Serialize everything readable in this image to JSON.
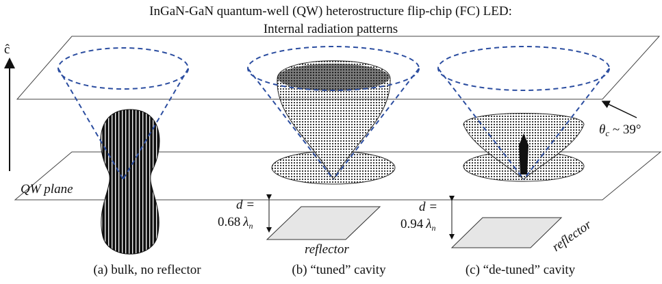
{
  "header": {
    "title_line1": "InGaN-GaN quantum-well (QW) heterostructure flip-chip (FC) LED:",
    "title_line2": "Internal radiation patterns"
  },
  "axis": {
    "label": "ĉ"
  },
  "angle": {
    "symbol": "θ",
    "subscript": "c",
    "text": " ~ 39°"
  },
  "plane": {
    "label": "QW plane"
  },
  "panels": [
    {
      "caption": "(a) bulk, no reflector"
    },
    {
      "caption": "(b) “tuned” cavity",
      "d_label": "d =",
      "d_value": "0.68",
      "lambda": "λ",
      "lambda_sub": "n",
      "reflector": "reflector"
    },
    {
      "caption": "(c) “de-tuned” cavity",
      "d_label": "d =",
      "d_value": "0.94",
      "lambda": "λ",
      "lambda_sub": "n",
      "reflector": "reflector"
    }
  ]
}
